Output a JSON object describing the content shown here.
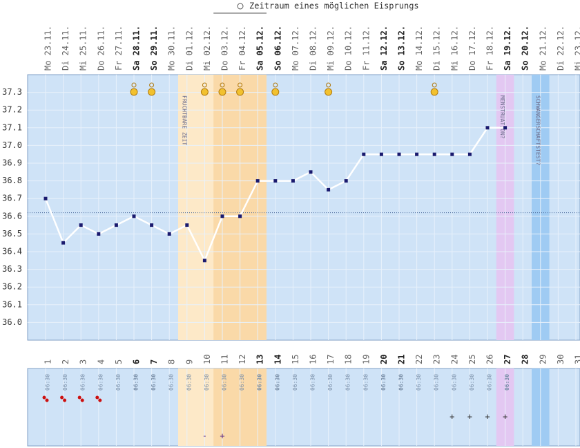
{
  "chart_data": {
    "type": "line",
    "title": "Zeitraum eines möglichen Eisprungs",
    "categories": [
      "Mo 23.11.",
      "Di 24.11.",
      "Mi 25.11.",
      "Do 26.11.",
      "Fr 27.11.",
      "Sa 28.11.",
      "So 29.11.",
      "Mo 30.11.",
      "Di 01.12.",
      "Mi 02.12.",
      "Do 03.12.",
      "Fr 04.12.",
      "Sa 05.12.",
      "So 06.12.",
      "Mo 07.12.",
      "Di 08.12.",
      "Mi 09.12.",
      "Do 10.12.",
      "Fr 11.12.",
      "Sa 12.12.",
      "So 13.12.",
      "Mo 14.12.",
      "Di 15.12.",
      "Mi 16.12.",
      "Do 17.12.",
      "Fr 18.12.",
      "Sa 19.12.",
      "So 20.12.",
      "Mo 21.12.",
      "Di 22.12.",
      "Mi 23.12."
    ],
    "day_numbers": [
      1,
      2,
      3,
      4,
      5,
      6,
      7,
      8,
      9,
      10,
      11,
      12,
      13,
      14,
      15,
      16,
      17,
      18,
      19,
      20,
      21,
      22,
      23,
      24,
      25,
      26,
      27,
      28,
      29,
      30,
      31
    ],
    "times": [
      "06:30",
      "06:30",
      "06:30",
      "06:30",
      "06:30",
      "06:30",
      "06:30",
      "06:30",
      "06:30",
      "06:30",
      "06:30",
      "06:30",
      "06:30",
      "06:30",
      "06:30",
      "06:30",
      "06:30",
      "06:30",
      "06:30",
      "06:30",
      "06:30",
      "06:30",
      "06:30",
      "06:30",
      "06:30",
      "06:30",
      "06:30",
      null,
      null,
      null,
      null
    ],
    "series": [
      {
        "color": "#1a1a6e",
        "values": [
          36.7,
          36.45,
          36.55,
          36.5,
          36.55,
          36.6,
          36.55,
          36.5,
          36.55,
          36.35,
          36.6,
          36.6,
          36.8,
          36.8,
          36.8,
          36.85,
          36.75,
          36.8,
          36.95,
          36.95,
          36.95,
          36.95,
          36.95,
          36.95,
          36.95,
          37.1,
          37.1,
          null,
          null,
          null,
          null
        ]
      }
    ],
    "ylim": [
      35.9,
      37.4
    ],
    "yticks": [
      {
        "value": 36.0,
        "label": "36.0"
      },
      36.1,
      36.2,
      36.3,
      36.4,
      36.5,
      36.6,
      36.7,
      36.8,
      36.9,
      {
        "value": 37.0,
        "label": "37.0"
      },
      37.1,
      37.2,
      37.3
    ],
    "coverline": 36.62,
    "grid": true,
    "ovulation_window": [
      11,
      13
    ],
    "bands": [
      {
        "label": "FRUCHTBARE ZEIT",
        "days": [
          9,
          13
        ],
        "color": "#fde9c8"
      },
      {
        "label": "MENSTRUATION?",
        "days": [
          27,
          27
        ],
        "color": "#e3c8f2"
      },
      {
        "label": "SCHWANGERSCHAFTSTEST?",
        "days": [
          29,
          29
        ],
        "color": "#9fcbf3"
      }
    ],
    "symbol_days": [
      6,
      7,
      10,
      11,
      12,
      14,
      17,
      23
    ],
    "bleeding_days": [
      1,
      2,
      3,
      4
    ],
    "cross_marks": {
      "label": "+",
      "days": [
        24,
        25,
        26,
        27
      ]
    },
    "test_marks": [
      {
        "day": 10,
        "label": "-"
      },
      {
        "day": 11,
        "label": "+"
      }
    ]
  }
}
